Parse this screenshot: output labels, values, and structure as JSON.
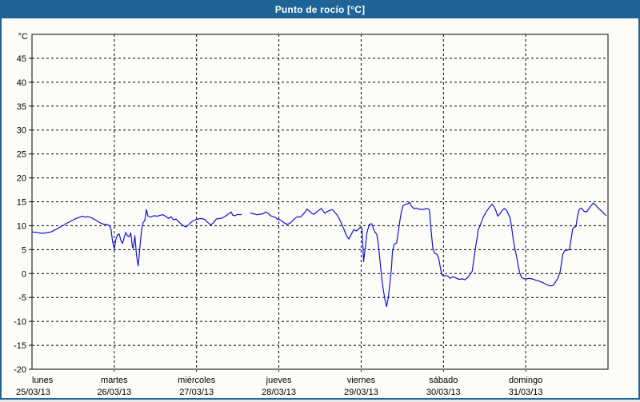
{
  "window": {
    "title": "Punto de rocío [°C]"
  },
  "chart_data": {
    "type": "line",
    "title": "Punto de rocío [°C]",
    "ylabel": "°C",
    "unit_label": "°C",
    "ylim": [
      -20,
      50
    ],
    "ytick_step": 5,
    "ytick_labels": [
      "45",
      "40",
      "35",
      "30",
      "25",
      "20",
      "15",
      "10",
      "5",
      "0",
      "-5",
      "-10",
      "-15",
      "-20"
    ],
    "grid": "dashed",
    "legend_position": "none",
    "x_axis_days": [
      {
        "name": "lunes",
        "date": "25/03/13"
      },
      {
        "name": "martes",
        "date": "26/03/13"
      },
      {
        "name": "miércoles",
        "date": "27/03/13"
      },
      {
        "name": "jueves",
        "date": "28/03/13"
      },
      {
        "name": "viernes",
        "date": "29/03/13"
      },
      {
        "name": "sábado",
        "date": "30/03/13"
      },
      {
        "name": "domingo",
        "date": "31/03/13"
      }
    ],
    "x_unit": "days since lunes 25/03/13 00:00",
    "x_range_days": [
      0,
      7
    ],
    "series": [
      {
        "name": "Punto de rocío",
        "color": "#1212cc",
        "value_unit": "°C",
        "segments": [
          [
            [
              0.0,
              8.7
            ],
            [
              0.06,
              8.6
            ],
            [
              0.12,
              8.4
            ],
            [
              0.17,
              8.5
            ],
            [
              0.23,
              8.7
            ],
            [
              0.29,
              9.2
            ],
            [
              0.35,
              9.8
            ],
            [
              0.41,
              10.4
            ],
            [
              0.47,
              10.9
            ],
            [
              0.52,
              11.4
            ],
            [
              0.58,
              11.8
            ],
            [
              0.62,
              12.0
            ],
            [
              0.65,
              11.8
            ],
            [
              0.68,
              11.9
            ],
            [
              0.72,
              11.7
            ],
            [
              0.76,
              11.3
            ],
            [
              0.8,
              10.9
            ],
            [
              0.84,
              10.5
            ],
            [
              0.87,
              10.3
            ],
            [
              0.91,
              10.3
            ],
            [
              0.94,
              10.0
            ],
            [
              0.96,
              9.3
            ],
            [
              0.98,
              6.6
            ],
            [
              1.0,
              5.2
            ],
            [
              1.02,
              7.2
            ],
            [
              1.04,
              8.1
            ],
            [
              1.06,
              8.3
            ],
            [
              1.08,
              6.9
            ],
            [
              1.1,
              6.3
            ],
            [
              1.12,
              7.5
            ],
            [
              1.14,
              8.6
            ],
            [
              1.16,
              7.9
            ],
            [
              1.18,
              7.7
            ],
            [
              1.2,
              8.5
            ],
            [
              1.22,
              5.6
            ],
            [
              1.23,
              5.3
            ],
            [
              1.25,
              7.9
            ],
            [
              1.27,
              3.9
            ],
            [
              1.29,
              1.6
            ],
            [
              1.31,
              5.1
            ],
            [
              1.33,
              8.9
            ],
            [
              1.35,
              10.7
            ],
            [
              1.37,
              11.0
            ],
            [
              1.39,
              13.4
            ],
            [
              1.41,
              12.0
            ],
            [
              1.44,
              11.8
            ],
            [
              1.48,
              12.1
            ],
            [
              1.52,
              12.0
            ],
            [
              1.56,
              12.2
            ],
            [
              1.59,
              12.3
            ],
            [
              1.63,
              11.9
            ],
            [
              1.66,
              11.5
            ],
            [
              1.69,
              11.9
            ],
            [
              1.72,
              11.2
            ],
            [
              1.75,
              11.4
            ],
            [
              1.79,
              10.7
            ],
            [
              1.83,
              10.1
            ],
            [
              1.87,
              9.7
            ],
            [
              1.91,
              10.3
            ],
            [
              1.94,
              10.8
            ],
            [
              1.98,
              11.2
            ],
            [
              2.02,
              11.4
            ],
            [
              2.06,
              11.5
            ],
            [
              2.1,
              11.3
            ],
            [
              2.14,
              10.6
            ],
            [
              2.17,
              10.2
            ],
            [
              2.2,
              10.5
            ],
            [
              2.24,
              11.4
            ],
            [
              2.28,
              11.5
            ],
            [
              2.31,
              11.6
            ],
            [
              2.35,
              12.0
            ],
            [
              2.39,
              12.5
            ],
            [
              2.42,
              12.9
            ],
            [
              2.44,
              12.2
            ],
            [
              2.47,
              12.1
            ],
            [
              2.5,
              12.4
            ],
            [
              2.53,
              12.3
            ],
            [
              2.55,
              12.4
            ]
          ],
          [
            [
              2.65,
              12.7
            ],
            [
              2.69,
              12.5
            ],
            [
              2.73,
              12.3
            ],
            [
              2.77,
              12.4
            ],
            [
              2.81,
              12.5
            ],
            [
              2.84,
              12.9
            ],
            [
              2.87,
              12.6
            ],
            [
              2.9,
              12.1
            ],
            [
              2.93,
              11.9
            ],
            [
              2.96,
              11.7
            ],
            [
              2.98,
              11.4
            ],
            [
              3.02,
              11.2
            ],
            [
              3.05,
              10.8
            ],
            [
              3.08,
              10.4
            ],
            [
              3.11,
              10.3
            ],
            [
              3.14,
              10.6
            ],
            [
              3.17,
              11.1
            ],
            [
              3.2,
              11.6
            ],
            [
              3.23,
              11.9
            ],
            [
              3.26,
              11.8
            ],
            [
              3.29,
              12.3
            ],
            [
              3.32,
              12.9
            ],
            [
              3.34,
              13.5
            ],
            [
              3.37,
              13.1
            ],
            [
              3.4,
              12.6
            ],
            [
              3.43,
              12.4
            ],
            [
              3.46,
              12.9
            ],
            [
              3.49,
              13.3
            ],
            [
              3.52,
              13.6
            ],
            [
              3.54,
              13.0
            ],
            [
              3.56,
              12.6
            ],
            [
              3.59,
              13.0
            ],
            [
              3.62,
              13.2
            ],
            [
              3.65,
              13.4
            ],
            [
              3.67,
              13.0
            ],
            [
              3.7,
              12.4
            ],
            [
              3.73,
              11.6
            ],
            [
              3.76,
              10.5
            ],
            [
              3.79,
              9.3
            ],
            [
              3.82,
              8.0
            ],
            [
              3.85,
              7.2
            ],
            [
              3.88,
              8.2
            ],
            [
              3.91,
              9.2
            ],
            [
              3.94,
              8.9
            ],
            [
              3.97,
              9.3
            ],
            [
              3.99,
              9.7
            ],
            [
              4.01,
              9.4
            ],
            [
              4.02,
              6.0
            ],
            [
              4.03,
              2.5
            ],
            [
              4.05,
              5.5
            ],
            [
              4.07,
              8.5
            ],
            [
              4.1,
              10.3
            ],
            [
              4.13,
              10.4
            ],
            [
              4.15,
              9.3
            ],
            [
              4.17,
              8.6
            ],
            [
              4.19,
              8.2
            ],
            [
              4.21,
              6.0
            ],
            [
              4.23,
              2.5
            ],
            [
              4.25,
              -0.8
            ],
            [
              4.27,
              -3.5
            ],
            [
              4.29,
              -5.5
            ],
            [
              4.31,
              -6.9
            ],
            [
              4.33,
              -5.0
            ],
            [
              4.35,
              -2.0
            ],
            [
              4.37,
              1.5
            ],
            [
              4.38,
              4.5
            ],
            [
              4.4,
              6.1
            ],
            [
              4.43,
              6.4
            ],
            [
              4.45,
              8.5
            ],
            [
              4.47,
              11.0
            ],
            [
              4.49,
              13.0
            ],
            [
              4.51,
              14.2
            ],
            [
              4.54,
              14.5
            ],
            [
              4.57,
              14.6
            ],
            [
              4.59,
              14.9
            ],
            [
              4.61,
              14.1
            ],
            [
              4.64,
              13.6
            ],
            [
              4.67,
              13.7
            ],
            [
              4.7,
              13.5
            ],
            [
              4.72,
              13.4
            ],
            [
              4.75,
              13.4
            ],
            [
              4.78,
              13.5
            ],
            [
              4.81,
              13.6
            ],
            [
              4.83,
              13.3
            ],
            [
              4.85,
              9.0
            ],
            [
              4.87,
              5.5
            ],
            [
              4.89,
              4.3
            ],
            [
              4.92,
              4.0
            ],
            [
              4.94,
              3.4
            ],
            [
              4.96,
              1.5
            ],
            [
              4.98,
              -0.2
            ],
            [
              5.0,
              -0.5
            ],
            [
              5.03,
              -0.4
            ],
            [
              5.06,
              -0.6
            ],
            [
              5.08,
              -1.0
            ],
            [
              5.11,
              -0.7
            ],
            [
              5.14,
              -0.8
            ],
            [
              5.17,
              -1.1
            ],
            [
              5.2,
              -1.2
            ],
            [
              5.23,
              -1.1
            ],
            [
              5.26,
              -1.3
            ],
            [
              5.29,
              -0.9
            ],
            [
              5.32,
              -0.3
            ],
            [
              5.35,
              0.5
            ],
            [
              5.37,
              3.0
            ],
            [
              5.39,
              5.5
            ],
            [
              5.41,
              7.5
            ],
            [
              5.42,
              9.0
            ],
            [
              5.44,
              9.8
            ],
            [
              5.46,
              10.7
            ],
            [
              5.49,
              12.0
            ],
            [
              5.52,
              12.9
            ],
            [
              5.54,
              13.4
            ],
            [
              5.56,
              13.9
            ],
            [
              5.59,
              14.5
            ],
            [
              5.61,
              14.1
            ],
            [
              5.63,
              13.5
            ],
            [
              5.66,
              12.0
            ],
            [
              5.69,
              12.6
            ],
            [
              5.72,
              13.3
            ],
            [
              5.74,
              13.6
            ],
            [
              5.77,
              13.2
            ],
            [
              5.79,
              12.4
            ],
            [
              5.81,
              11.7
            ],
            [
              5.83,
              9.5
            ],
            [
              5.85,
              7.0
            ],
            [
              5.87,
              5.0
            ],
            [
              5.89,
              3.5
            ],
            [
              5.91,
              1.5
            ],
            [
              5.93,
              0.0
            ],
            [
              5.95,
              -0.8
            ],
            [
              5.98,
              -1.1
            ],
            [
              6.01,
              -1.1
            ],
            [
              6.04,
              -1.0
            ],
            [
              6.07,
              -1.1
            ],
            [
              6.1,
              -1.2
            ],
            [
              6.12,
              -1.4
            ],
            [
              6.15,
              -1.5
            ],
            [
              6.18,
              -1.7
            ],
            [
              6.21,
              -1.9
            ],
            [
              6.24,
              -2.2
            ],
            [
              6.27,
              -2.4
            ],
            [
              6.3,
              -2.6
            ],
            [
              6.33,
              -2.5
            ],
            [
              6.36,
              -1.8
            ],
            [
              6.39,
              -1.0
            ],
            [
              6.42,
              0.5
            ],
            [
              6.44,
              2.8
            ],
            [
              6.45,
              4.0
            ],
            [
              6.47,
              4.7
            ],
            [
              6.5,
              4.9
            ],
            [
              6.53,
              5.0
            ],
            [
              6.55,
              7.0
            ],
            [
              6.57,
              9.3
            ],
            [
              6.59,
              9.7
            ],
            [
              6.61,
              9.8
            ],
            [
              6.63,
              12.0
            ],
            [
              6.65,
              13.4
            ],
            [
              6.67,
              13.7
            ],
            [
              6.69,
              13.4
            ],
            [
              6.71,
              13.0
            ],
            [
              6.74,
              12.9
            ],
            [
              6.77,
              13.6
            ],
            [
              6.8,
              14.3
            ],
            [
              6.82,
              14.7
            ],
            [
              6.84,
              14.5
            ],
            [
              6.87,
              13.9
            ],
            [
              6.9,
              13.4
            ],
            [
              6.93,
              12.9
            ],
            [
              6.96,
              12.4
            ],
            [
              6.98,
              12.1
            ]
          ]
        ]
      }
    ]
  },
  "colors": {
    "frame_blue": "#1e6496",
    "title_text": "#ffffff",
    "background": "#fcfdf8",
    "grid": "#000000",
    "axis": "#000000",
    "line": "#1212cc"
  }
}
